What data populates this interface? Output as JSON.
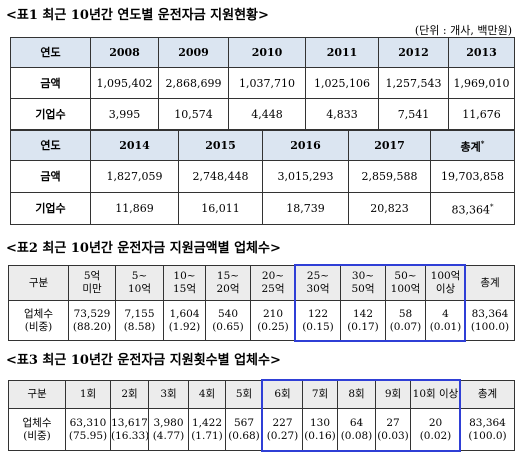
{
  "table1": {
    "title": "<표1 최근 10년간 연도별 운전자금 지원현황>",
    "unit": "(단위 : 개사, 백만원)",
    "blocks": [
      {
        "header": [
          "연도",
          "2008",
          "2009",
          "2010",
          "2011",
          "2012",
          "2013"
        ],
        "rows": [
          [
            "금액",
            "1,095,402",
            "2,868,699",
            "1,037,710",
            "1,025,106",
            "1,257,543",
            "1,969,010"
          ],
          [
            "기업수",
            "3,995",
            "10,574",
            "4,448",
            "4,833",
            "7,541",
            "11,676"
          ]
        ]
      },
      {
        "header": [
          "연도",
          "2014",
          "2015",
          "2016",
          "2017",
          {
            "text": "총계",
            "mark": "*"
          }
        ],
        "rows": [
          [
            "금액",
            "1,827,059",
            "2,748,448",
            "3,015,293",
            "2,859,588",
            "19,703,858"
          ],
          [
            "기업수",
            "11,869",
            "16,011",
            "18,739",
            "20,823",
            {
              "text": "83,364",
              "mark": "*"
            }
          ]
        ]
      }
    ]
  },
  "table2": {
    "title": "<표2 최근 10년간 운전자금 지원금액별 업체수>",
    "header": [
      "구분",
      "5억\n미만",
      "5~\n10억",
      "10~\n15억",
      "15~\n20억",
      "20~\n25억",
      "25~\n30억",
      "30~\n50억",
      "50~\n100억",
      "100억\n이상",
      "총계"
    ],
    "rows": [
      [
        "업체수\n(비중)",
        "73,529\n(88.20)",
        "7,155\n(8.58)",
        "1,604\n(1.92)",
        "540\n(0.65)",
        "210\n(0.25)",
        "122\n(0.15)",
        "142\n(0.17)",
        "58\n(0.07)",
        "4\n(0.01)",
        "83,364\n(100.0)"
      ]
    ]
  },
  "table3": {
    "title": "<표3 최근 10년간 운전자금 지원횟수별 업체수>",
    "header": [
      "구분",
      "1회",
      "2회",
      "3회",
      "4회",
      "5회",
      "6회",
      "7회",
      "8회",
      "9회",
      "10회 이상",
      "총계"
    ],
    "rows": [
      [
        "업체수\n(비중)",
        "63,310\n(75.95)",
        "13,617\n(16.33)",
        "3,980\n(4.77)",
        "1,422\n(1.71)",
        "567\n(0.68)",
        "227\n(0.27)",
        "130\n(0.16)",
        "64\n(0.08)",
        "27\n(0.03)",
        "20\n(0.02)",
        "83,364\n(100.0)"
      ]
    ]
  }
}
